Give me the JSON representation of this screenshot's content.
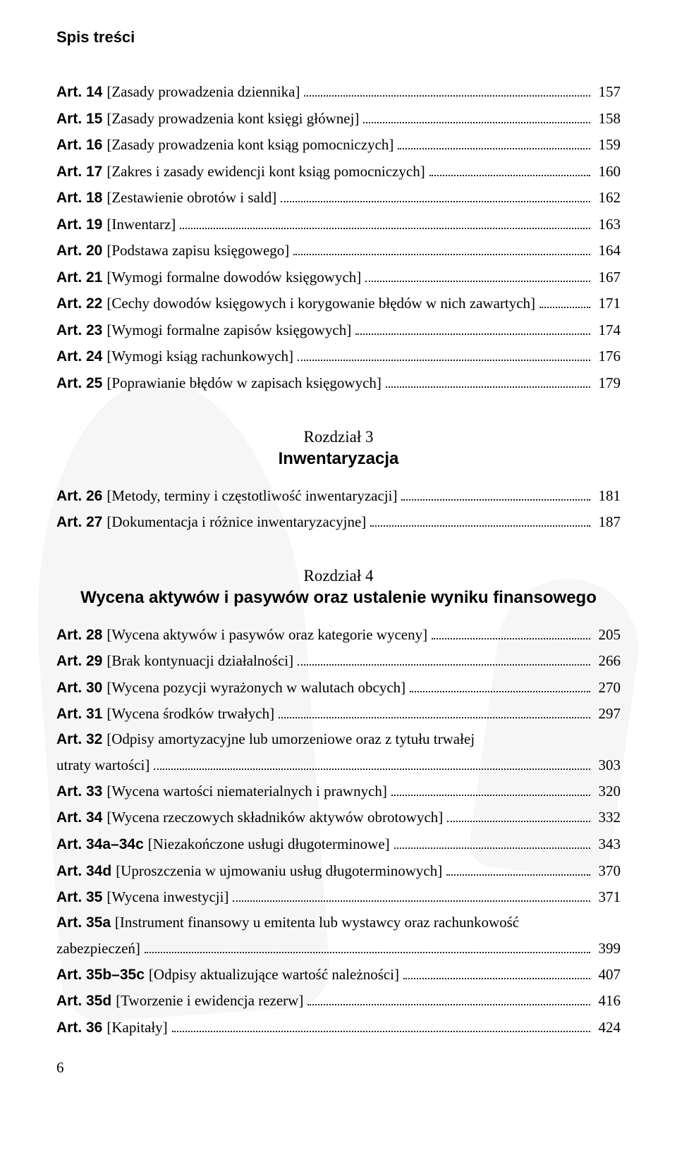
{
  "running_head": "Spis treści",
  "page_number": "6",
  "chapters": [
    {
      "label": "Rozdział 3",
      "title": "Inwentaryzacja"
    },
    {
      "label": "Rozdział 4",
      "title": "Wycena aktywów i pasywów oraz ustalenie wyniku finansowego"
    }
  ],
  "entries_block1": [
    {
      "art": "Art. 14",
      "title": "[Zasady prowadzenia dziennika]",
      "page": "157"
    },
    {
      "art": "Art. 15",
      "title": "[Zasady prowadzenia kont księgi głównej]",
      "page": "158"
    },
    {
      "art": "Art. 16",
      "title": "[Zasady prowadzenia kont ksiąg pomocniczych]",
      "page": "159"
    },
    {
      "art": "Art. 17",
      "title": "[Zakres i zasady ewidencji kont ksiąg pomocniczych]",
      "page": "160"
    },
    {
      "art": "Art. 18",
      "title": "[Zestawienie obrotów i sald]",
      "page": "162"
    },
    {
      "art": "Art. 19",
      "title": "[Inwentarz]",
      "page": "163"
    },
    {
      "art": "Art. 20",
      "title": "[Podstawa zapisu księgowego]",
      "page": "164"
    },
    {
      "art": "Art. 21",
      "title": "[Wymogi formalne dowodów księgowych]",
      "page": "167"
    },
    {
      "art": "Art. 22",
      "title": "[Cechy dowodów księgowych i korygowanie błędów w nich zawartych]",
      "page": "171"
    },
    {
      "art": "Art. 23",
      "title": "[Wymogi formalne zapisów księgowych]",
      "page": "174"
    },
    {
      "art": "Art. 24",
      "title": "[Wymogi ksiąg rachunkowych]",
      "page": "176"
    },
    {
      "art": "Art. 25",
      "title": "[Poprawianie błędów w zapisach księgowych]",
      "page": "179"
    }
  ],
  "entries_block2": [
    {
      "art": "Art. 26",
      "title": "[Metody, terminy i częstotliwość inwentaryzacji]",
      "page": "181"
    },
    {
      "art": "Art. 27",
      "title": "[Dokumentacja i różnice inwentaryzacyjne]",
      "page": "187"
    }
  ],
  "entries_block3": [
    {
      "art": "Art. 28",
      "title": "[Wycena aktywów i pasywów oraz kategorie wyceny]",
      "page": "205"
    },
    {
      "art": "Art. 29",
      "title": "[Brak kontynuacji działalności]",
      "page": "266"
    },
    {
      "art": "Art. 30",
      "title": "[Wycena pozycji wyrażonych w walutach obcych]",
      "page": "270"
    },
    {
      "art": "Art. 31",
      "title": "[Wycena środków trwałych]",
      "page": "297"
    },
    {
      "art": "Art. 32",
      "title_line1": "[Odpisy amortyzacyjne lub umorzeniowe oraz z tytułu trwałej",
      "title_line2": "utraty wartości]",
      "page": "303",
      "multiline": true
    },
    {
      "art": "Art. 33",
      "title": "[Wycena wartości niematerialnych i prawnych]",
      "page": "320"
    },
    {
      "art": "Art. 34",
      "title": "[Wycena rzeczowych składników aktywów obrotowych]",
      "page": "332"
    },
    {
      "art": "Art. 34a–34c",
      "title": "[Niezakończone usługi długoterminowe]",
      "page": "343"
    },
    {
      "art": "Art. 34d",
      "title": "[Uproszczenia w ujmowaniu usług długoterminowych]",
      "page": "370"
    },
    {
      "art": "Art. 35",
      "title": "[Wycena inwestycji]",
      "page": "371"
    },
    {
      "art": "Art. 35a",
      "title_line1": "[Instrument finansowy u emitenta lub wystawcy oraz rachunkowość",
      "title_line2": "zabezpieczeń]",
      "page": "399",
      "multiline": true
    },
    {
      "art": "Art. 35b–35c",
      "title": "[Odpisy aktualizujące wartość należności]",
      "page": "407"
    },
    {
      "art": "Art. 35d",
      "title": "[Tworzenie i ewidencja rezerw]",
      "page": "416"
    },
    {
      "art": "Art. 36",
      "title": "[Kapitały]",
      "page": "424"
    }
  ]
}
